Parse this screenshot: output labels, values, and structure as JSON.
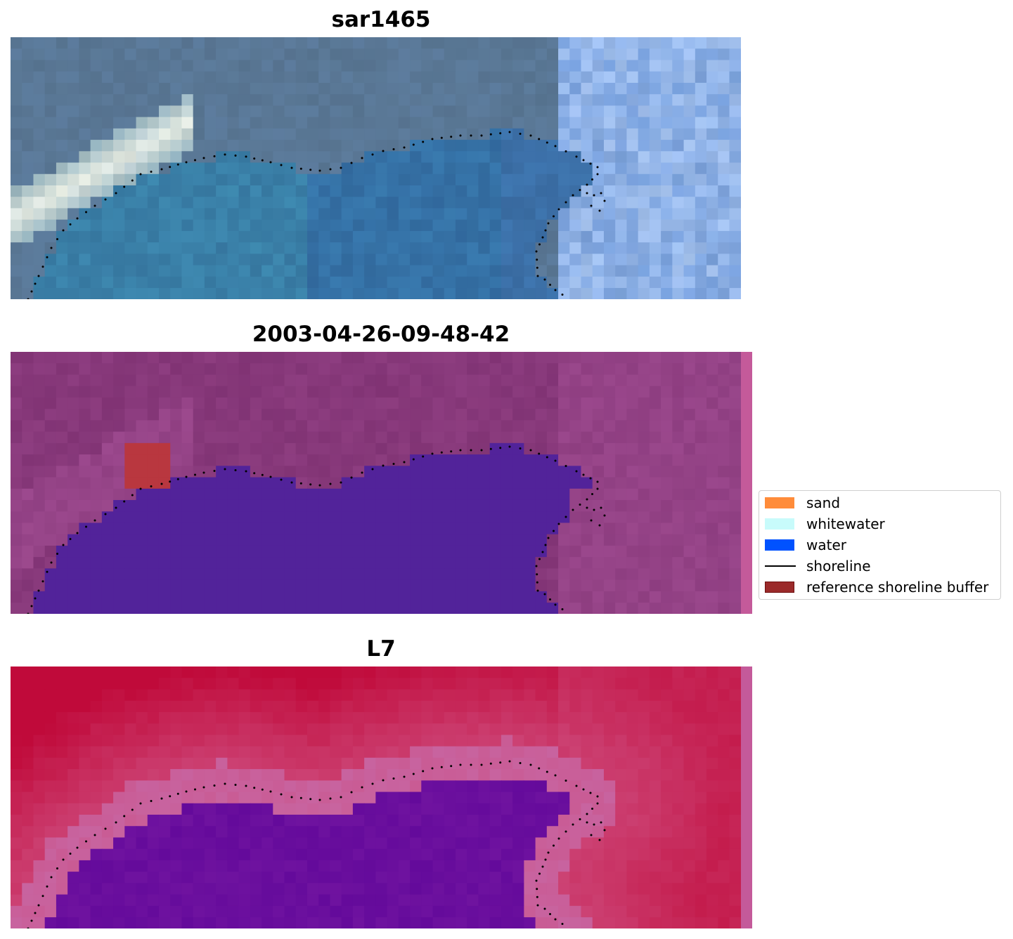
{
  "panels": [
    {
      "title": "sar1465",
      "style": "rgb"
    },
    {
      "title": "2003-04-26-09-48-42",
      "style": "classified"
    },
    {
      "title": "L7",
      "style": "index"
    }
  ],
  "legend": {
    "items": [
      {
        "label": "sand",
        "kind": "patch",
        "color": "#ff8c3a"
      },
      {
        "label": "whitewater",
        "kind": "patch",
        "color": "#c8fbfb"
      },
      {
        "label": "water",
        "kind": "patch",
        "color": "#0052ff"
      },
      {
        "label": "shoreline",
        "kind": "line",
        "color": "#000000"
      },
      {
        "label": "reference shoreline buffer",
        "kind": "patch",
        "color": "#9b2a2a",
        "edge": "#6e1010"
      }
    ]
  },
  "colors": {
    "water_class": "#52239a",
    "land_class": "#7a2e6e",
    "buffer": "#b9373f",
    "index_high": "#c00a3a",
    "index_low": "#5c0a9a"
  }
}
